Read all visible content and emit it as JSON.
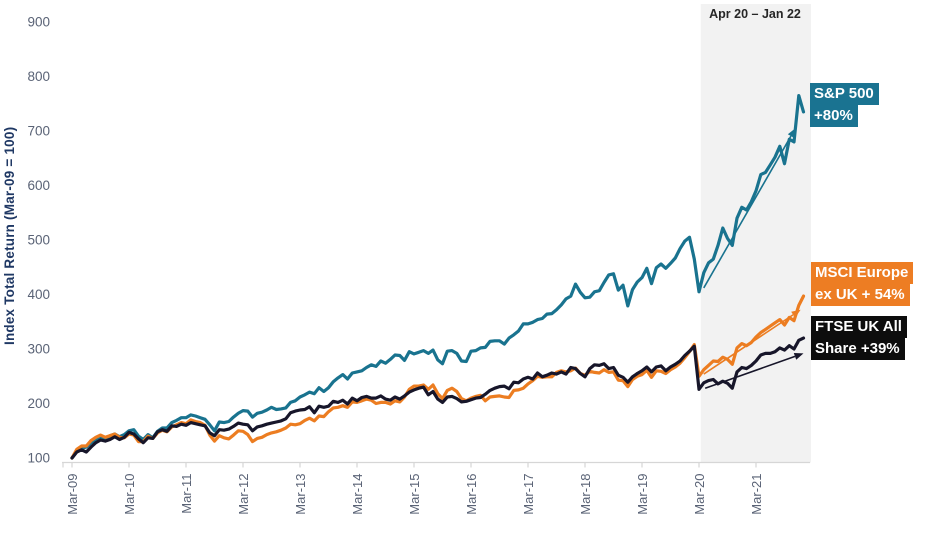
{
  "chart_data": {
    "type": "line",
    "title": "",
    "y_axis": {
      "title": "Index Total Return (Mar-09 = 100)",
      "min": 100,
      "max": 900,
      "step": 100,
      "ticks": [
        100,
        200,
        300,
        400,
        500,
        600,
        700,
        800,
        900
      ]
    },
    "x_axis": {
      "ticks": [
        "Mar-09",
        "Mar-10",
        "Mar-11",
        "Mar-12",
        "Mar-13",
        "Mar-14",
        "Mar-15",
        "Mar-16",
        "Mar-17",
        "Mar-18",
        "Mar-19",
        "Mar-20",
        "Mar-21"
      ],
      "points_unit": "monthly, Mar-09 through Jan-22"
    },
    "band": {
      "label": "Apr 20 – Jan 22",
      "from": "Apr-20",
      "to": "Jan-22",
      "from_month_index": 133,
      "fill": "#f2f2f2"
    },
    "grid": "off",
    "legend_position": "right-callouts",
    "series": [
      {
        "name": "S&P 500",
        "gain_label": "+80%",
        "color": "#19738F",
        "values": [
          100,
          112,
          118,
          120,
          128,
          132,
          136,
          134,
          141,
          144,
          139,
          143,
          150,
          152,
          140,
          134,
          143,
          137,
          149,
          155,
          155,
          165,
          169,
          174,
          174,
          179,
          177,
          174,
          171,
          161,
          150,
          166,
          165,
          167,
          175,
          182,
          187,
          186,
          175,
          182,
          184,
          188,
          193,
          189,
          190,
          192,
          202,
          205,
          212,
          216,
          221,
          218,
          229,
          222,
          229,
          240,
          247,
          253,
          245,
          256,
          258,
          260,
          266,
          271,
          268,
          278,
          274,
          281,
          289,
          288,
          279,
          295,
          291,
          294,
          297,
          292,
          298,
          280,
          273,
          296,
          297,
          292,
          278,
          277,
          296,
          297,
          302,
          303,
          314,
          315,
          315,
          309,
          320,
          326,
          333,
          346,
          346,
          349,
          354,
          356,
          364,
          365,
          372,
          381,
          392,
          397,
          419,
          404,
          394,
          395,
          405,
          407,
          422,
          436,
          438,
          408,
          417,
          379,
          409,
          423,
          431,
          448,
          420,
          449,
          456,
          448,
          457,
          467,
          484,
          498,
          505,
          465,
          405,
          440,
          458,
          465,
          490,
          522,
          503,
          490,
          540,
          560,
          555,
          570,
          590,
          620,
          624,
          638,
          652,
          672,
          640,
          685,
          680,
          765,
          735
        ]
      },
      {
        "name": "MSCI Europe ex UK",
        "gain_label": "+ 54%",
        "color": "#EC7D21",
        "values": [
          100,
          116,
          122,
          122,
          132,
          138,
          142,
          138,
          141,
          144,
          138,
          137,
          144,
          142,
          130,
          130,
          140,
          136,
          146,
          151,
          148,
          157,
          161,
          165,
          163,
          170,
          167,
          165,
          160,
          142,
          131,
          141,
          137,
          135,
          142,
          150,
          149,
          143,
          130,
          136,
          138,
          143,
          146,
          148,
          151,
          155,
          162,
          161,
          163,
          169,
          173,
          168,
          177,
          176,
          185,
          192,
          193,
          196,
          193,
          203,
          202,
          205,
          208,
          206,
          200,
          202,
          202,
          199,
          205,
          203,
          212,
          226,
          232,
          232,
          234,
          226,
          234,
          218,
          209,
          224,
          228,
          222,
          209,
          205,
          210,
          213,
          215,
          205,
          212,
          213,
          214,
          212,
          211,
          224,
          225,
          228,
          236,
          242,
          250,
          248,
          249,
          249,
          257,
          260,
          258,
          260,
          265,
          255,
          252,
          259,
          257,
          256,
          262,
          257,
          258,
          243,
          242,
          231,
          244,
          250,
          253,
          261,
          248,
          260,
          259,
          255,
          262,
          267,
          274,
          284,
          295,
          308,
          250,
          262,
          270,
          278,
          277,
          285,
          281,
          272,
          302,
          310,
          306,
          312,
          322,
          330,
          336,
          342,
          348,
          354,
          344,
          358,
          352,
          380,
          397
        ]
      },
      {
        "name": "FTSE UK All Share",
        "gain_label": "+39%",
        "color": "#17162A",
        "values": [
          100,
          111,
          115,
          111,
          120,
          128,
          133,
          131,
          134,
          139,
          134,
          138,
          147,
          144,
          135,
          128,
          137,
          136,
          148,
          152,
          149,
          159,
          158,
          162,
          160,
          165,
          163,
          161,
          159,
          146,
          141,
          152,
          151,
          153,
          158,
          164,
          162,
          161,
          150,
          157,
          159,
          162,
          164,
          166,
          168,
          172,
          183,
          186,
          188,
          189,
          194,
          183,
          195,
          193,
          195,
          204,
          202,
          206,
          199,
          210,
          205,
          211,
          213,
          210,
          210,
          214,
          208,
          206,
          212,
          208,
          214,
          221,
          225,
          228,
          230,
          216,
          222,
          208,
          202,
          212,
          213,
          209,
          203,
          204,
          207,
          210,
          211,
          217,
          224,
          228,
          231,
          232,
          227,
          239,
          238,
          245,
          248,
          245,
          256,
          249,
          252,
          256,
          254,
          258,
          254,
          266,
          264,
          255,
          249,
          264,
          271,
          270,
          273,
          264,
          266,
          252,
          248,
          239,
          249,
          255,
          260,
          267,
          258,
          267,
          269,
          260,
          267,
          272,
          278,
          288,
          296,
          305,
          226,
          238,
          242,
          244,
          236,
          241,
          237,
          228,
          258,
          266,
          264,
          270,
          278,
          289,
          292,
          292,
          295,
          302,
          298,
          306,
          300,
          316,
          320
        ]
      }
    ],
    "callouts": [
      {
        "lines": [
          "S&P 500",
          "+80%"
        ],
        "bg": "#1A7391"
      },
      {
        "lines": [
          "MSCI Europe",
          "ex UK + 54%"
        ],
        "bg": "#ED7D23"
      },
      {
        "lines": [
          "FTSE UK All",
          "Share +39%"
        ],
        "bg": "#0D0D0D"
      }
    ],
    "arrows": [
      {
        "color": "#19738F",
        "from": {
          "month": 133,
          "value": 412
        },
        "to": {
          "month": 152.3,
          "value": 705
        }
      },
      {
        "color": "#EC7D21",
        "from": {
          "month": 133,
          "value": 254
        },
        "to": {
          "month": 153.4,
          "value": 372
        }
      },
      {
        "color": "#17162A",
        "from": {
          "month": 133.3,
          "value": 228
        },
        "to": {
          "month": 154,
          "value": 292
        }
      }
    ],
    "colors": {
      "axis_line": "#d6d6d6",
      "tick_label": "#5a6376",
      "y_axis_title": "#1f3864",
      "band_label": "#262626",
      "background": "#ffffff"
    }
  }
}
